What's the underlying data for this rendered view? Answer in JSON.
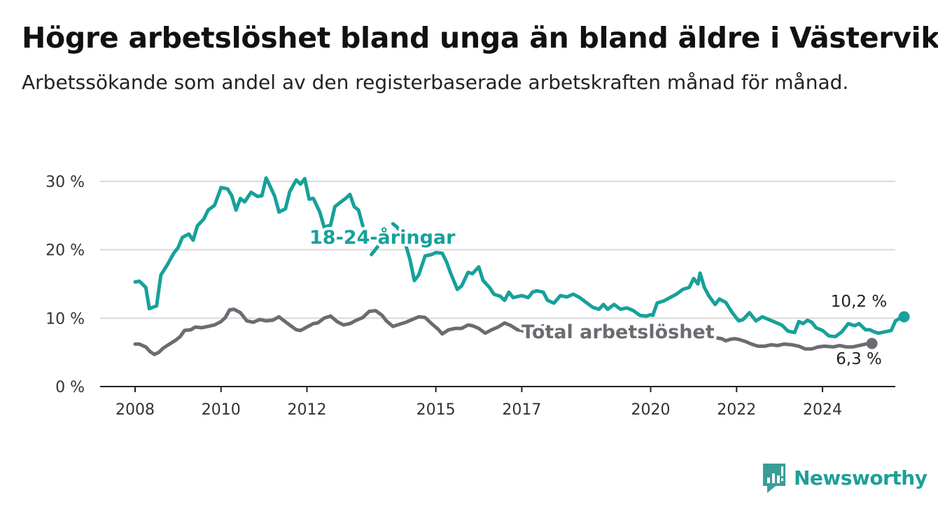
{
  "header": {
    "title": "Högre arbetslöshet bland unga än bland äldre i Västervik",
    "subtitle": "Arbetssökande som andel av den registerbaserade arbetskraften månad för månad."
  },
  "brand": {
    "name": "Newsworthy",
    "icon": "bar-chart-logo-icon",
    "color": "#3a9e98"
  },
  "colors": {
    "youth": "#16a19a",
    "total": "#6e6a72",
    "grid": "#d9d9d9",
    "axis": "#222222"
  },
  "chart_data": {
    "type": "line",
    "title": "Högre arbetslöshet bland unga än bland äldre i Västervik",
    "subtitle": "Arbetssökande som andel av den registerbaserade arbetskraften månad för månad.",
    "ylim": [
      0,
      30
    ],
    "yticks": [
      0,
      10,
      20,
      30
    ],
    "ytick_labels": [
      "0 %",
      "10 %",
      "20 %",
      "30 %"
    ],
    "xticks": [
      2008,
      2010,
      2012,
      2015,
      2017,
      2020,
      2022,
      2024
    ],
    "xtick_labels": [
      "2008",
      "2010",
      "2012",
      "2015",
      "2017",
      "2020",
      "2022",
      "2024"
    ],
    "grid": true,
    "series": [
      {
        "name": "18-24-åringar",
        "color": "#16a19a",
        "end_label": "10,2 %",
        "points": [
          [
            2008.0,
            15.3
          ],
          [
            2008.1,
            15.4
          ],
          [
            2008.25,
            14.5
          ],
          [
            2008.33,
            11.4
          ],
          [
            2008.5,
            11.8
          ],
          [
            2008.6,
            16.3
          ],
          [
            2008.75,
            17.8
          ],
          [
            2008.9,
            19.5
          ],
          [
            2009.0,
            20.3
          ],
          [
            2009.1,
            21.8
          ],
          [
            2009.25,
            22.3
          ],
          [
            2009.35,
            21.4
          ],
          [
            2009.45,
            23.5
          ],
          [
            2009.6,
            24.5
          ],
          [
            2009.7,
            25.8
          ],
          [
            2009.85,
            26.5
          ],
          [
            2010.0,
            29.1
          ],
          [
            2010.15,
            28.9
          ],
          [
            2010.25,
            27.9
          ],
          [
            2010.35,
            25.8
          ],
          [
            2010.45,
            27.5
          ],
          [
            2010.55,
            27.0
          ],
          [
            2010.7,
            28.4
          ],
          [
            2010.85,
            27.8
          ],
          [
            2010.95,
            27.9
          ],
          [
            2011.05,
            30.5
          ],
          [
            2011.15,
            29.2
          ],
          [
            2011.25,
            27.8
          ],
          [
            2011.35,
            25.5
          ],
          [
            2011.5,
            26.0
          ],
          [
            2011.6,
            28.5
          ],
          [
            2011.75,
            30.2
          ],
          [
            2011.85,
            29.6
          ],
          [
            2011.95,
            30.4
          ],
          [
            2012.05,
            27.4
          ],
          [
            2012.15,
            27.5
          ],
          [
            2012.3,
            25.5
          ],
          [
            2012.4,
            23.3
          ],
          [
            2012.55,
            23.6
          ],
          [
            2012.65,
            26.3
          ],
          [
            2012.75,
            26.8
          ],
          [
            2012.9,
            27.5
          ],
          [
            2013.0,
            28.1
          ],
          [
            2013.1,
            26.3
          ],
          [
            2013.2,
            25.8
          ],
          [
            2013.3,
            23.5
          ]
        ],
        "points_after_label": [
          [
            2014.0,
            23.8
          ],
          [
            2014.1,
            23.3
          ],
          [
            2014.25,
            21.8
          ],
          [
            2014.4,
            18.5
          ],
          [
            2014.5,
            15.5
          ],
          [
            2014.6,
            16.3
          ],
          [
            2014.75,
            19.1
          ],
          [
            2014.9,
            19.3
          ],
          [
            2015.0,
            19.6
          ],
          [
            2015.15,
            19.5
          ],
          [
            2015.25,
            18.2
          ],
          [
            2015.35,
            16.5
          ],
          [
            2015.5,
            14.2
          ],
          [
            2015.6,
            14.7
          ],
          [
            2015.75,
            16.7
          ],
          [
            2015.85,
            16.5
          ],
          [
            2016.0,
            17.5
          ],
          [
            2016.1,
            15.5
          ],
          [
            2016.25,
            14.5
          ],
          [
            2016.35,
            13.5
          ],
          [
            2016.5,
            13.2
          ],
          [
            2016.6,
            12.6
          ],
          [
            2016.7,
            13.8
          ],
          [
            2016.8,
            13.0
          ],
          [
            2017.0,
            13.3
          ],
          [
            2017.15,
            13.0
          ],
          [
            2017.25,
            13.8
          ],
          [
            2017.35,
            14.0
          ],
          [
            2017.5,
            13.8
          ],
          [
            2017.6,
            12.6
          ],
          [
            2017.75,
            12.2
          ],
          [
            2017.9,
            13.3
          ],
          [
            2018.05,
            13.1
          ],
          [
            2018.2,
            13.5
          ],
          [
            2018.35,
            13.0
          ],
          [
            2018.5,
            12.3
          ],
          [
            2018.65,
            11.6
          ],
          [
            2018.8,
            11.3
          ],
          [
            2018.9,
            12.0
          ],
          [
            2019.0,
            11.3
          ],
          [
            2019.15,
            12.0
          ],
          [
            2019.3,
            11.3
          ],
          [
            2019.45,
            11.5
          ],
          [
            2019.6,
            11.1
          ],
          [
            2019.75,
            10.4
          ],
          [
            2019.9,
            10.3
          ],
          [
            2020.0,
            10.5
          ],
          [
            2020.05,
            10.4
          ],
          [
            2020.15,
            12.2
          ],
          [
            2020.3,
            12.5
          ],
          [
            2020.45,
            13.0
          ],
          [
            2020.6,
            13.5
          ],
          [
            2020.75,
            14.2
          ],
          [
            2020.9,
            14.5
          ],
          [
            2021.0,
            15.8
          ],
          [
            2021.1,
            15.0
          ],
          [
            2021.15,
            16.6
          ],
          [
            2021.25,
            14.5
          ],
          [
            2021.35,
            13.3
          ],
          [
            2021.5,
            12.0
          ],
          [
            2021.6,
            12.8
          ],
          [
            2021.75,
            12.3
          ],
          [
            2021.9,
            10.8
          ],
          [
            2022.05,
            9.6
          ],
          [
            2022.15,
            9.8
          ],
          [
            2022.3,
            10.8
          ],
          [
            2022.45,
            9.6
          ],
          [
            2022.6,
            10.2
          ],
          [
            2022.75,
            9.8
          ],
          [
            2022.9,
            9.4
          ],
          [
            2023.05,
            9.0
          ],
          [
            2023.2,
            8.1
          ],
          [
            2023.35,
            7.9
          ],
          [
            2023.45,
            9.5
          ],
          [
            2023.55,
            9.2
          ],
          [
            2023.65,
            9.7
          ],
          [
            2023.75,
            9.4
          ],
          [
            2023.85,
            8.6
          ],
          [
            2024.0,
            8.2
          ],
          [
            2024.15,
            7.4
          ],
          [
            2024.3,
            7.3
          ],
          [
            2024.45,
            8.0
          ],
          [
            2024.6,
            9.2
          ],
          [
            2024.75,
            8.9
          ],
          [
            2024.85,
            9.2
          ],
          [
            2025.0,
            8.3
          ],
          [
            2025.1,
            8.3
          ],
          [
            2025.2,
            8.0
          ],
          [
            2025.3,
            7.8
          ],
          [
            2025.45,
            8.0
          ],
          [
            2025.6,
            8.2
          ],
          [
            2025.7,
            9.6
          ],
          [
            2025.8,
            10.0
          ],
          [
            2025.9,
            10.2
          ]
        ],
        "gap_after_label": [
          [
            2013.5,
            19.3
          ],
          [
            2013.65,
            20.5
          ]
        ],
        "inline_label": "18-24-åringar"
      },
      {
        "name": "Total arbetslöshet",
        "color": "#6e6a72",
        "end_label": "6,3 %",
        "points": [
          [
            2008.0,
            6.2
          ],
          [
            2008.1,
            6.2
          ],
          [
            2008.25,
            5.8
          ],
          [
            2008.35,
            5.1
          ],
          [
            2008.45,
            4.7
          ],
          [
            2008.55,
            5.0
          ],
          [
            2008.65,
            5.6
          ],
          [
            2008.8,
            6.2
          ],
          [
            2008.95,
            6.8
          ],
          [
            2009.05,
            7.3
          ],
          [
            2009.15,
            8.2
          ],
          [
            2009.3,
            8.3
          ],
          [
            2009.4,
            8.7
          ],
          [
            2009.55,
            8.6
          ],
          [
            2009.7,
            8.8
          ],
          [
            2009.85,
            9.0
          ],
          [
            2010.0,
            9.5
          ],
          [
            2010.1,
            10.1
          ],
          [
            2010.2,
            11.2
          ],
          [
            2010.3,
            11.3
          ],
          [
            2010.45,
            10.8
          ],
          [
            2010.6,
            9.6
          ],
          [
            2010.75,
            9.4
          ],
          [
            2010.9,
            9.8
          ],
          [
            2011.05,
            9.6
          ],
          [
            2011.2,
            9.7
          ],
          [
            2011.35,
            10.2
          ],
          [
            2011.45,
            9.7
          ],
          [
            2011.6,
            9.0
          ],
          [
            2011.75,
            8.3
          ],
          [
            2011.85,
            8.2
          ],
          [
            2012.0,
            8.7
          ],
          [
            2012.15,
            9.2
          ],
          [
            2012.25,
            9.3
          ],
          [
            2012.4,
            10.0
          ],
          [
            2012.55,
            10.3
          ],
          [
            2012.7,
            9.5
          ],
          [
            2012.85,
            9.0
          ],
          [
            2013.0,
            9.2
          ],
          [
            2013.15,
            9.7
          ],
          [
            2013.3,
            10.1
          ],
          [
            2013.45,
            11.0
          ],
          [
            2013.6,
            11.1
          ],
          [
            2013.75,
            10.4
          ],
          [
            2013.85,
            9.6
          ],
          [
            2014.0,
            8.8
          ],
          [
            2014.15,
            9.1
          ],
          [
            2014.3,
            9.4
          ],
          [
            2014.45,
            9.8
          ],
          [
            2014.6,
            10.2
          ],
          [
            2014.75,
            10.1
          ],
          [
            2014.9,
            9.2
          ],
          [
            2015.05,
            8.4
          ],
          [
            2015.15,
            7.7
          ],
          [
            2015.3,
            8.3
          ],
          [
            2015.45,
            8.5
          ],
          [
            2015.6,
            8.5
          ],
          [
            2015.75,
            9.0
          ],
          [
            2015.85,
            8.9
          ],
          [
            2016.0,
            8.5
          ],
          [
            2016.15,
            7.8
          ],
          [
            2016.3,
            8.3
          ],
          [
            2016.45,
            8.7
          ],
          [
            2016.6,
            9.3
          ],
          [
            2016.75,
            8.9
          ],
          [
            2016.9,
            8.3
          ],
          [
            2017.0,
            8.2
          ],
          [
            2017.1,
            7.9
          ],
          [
            2017.25,
            8.4
          ],
          [
            2017.35,
            8.4
          ],
          [
            2017.5,
            8.9
          ]
        ],
        "points_after_label": [
          [
            2021.55,
            7.1
          ],
          [
            2021.65,
            7.0
          ],
          [
            2021.75,
            6.7
          ],
          [
            2021.85,
            6.9
          ],
          [
            2021.95,
            7.0
          ],
          [
            2022.05,
            6.9
          ],
          [
            2022.2,
            6.6
          ],
          [
            2022.35,
            6.2
          ],
          [
            2022.5,
            5.9
          ],
          [
            2022.65,
            5.9
          ],
          [
            2022.8,
            6.1
          ],
          [
            2022.95,
            6.0
          ],
          [
            2023.1,
            6.2
          ],
          [
            2023.3,
            6.1
          ],
          [
            2023.45,
            5.9
          ],
          [
            2023.6,
            5.5
          ],
          [
            2023.75,
            5.5
          ],
          [
            2023.9,
            5.8
          ],
          [
            2024.05,
            5.9
          ],
          [
            2024.25,
            5.8
          ],
          [
            2024.4,
            6.0
          ],
          [
            2024.55,
            5.8
          ],
          [
            2024.7,
            5.8
          ],
          [
            2024.85,
            6.0
          ],
          [
            2025.0,
            6.2
          ],
          [
            2025.15,
            6.3
          ]
        ],
        "inline_label": "Total arbetslöshet"
      }
    ]
  }
}
